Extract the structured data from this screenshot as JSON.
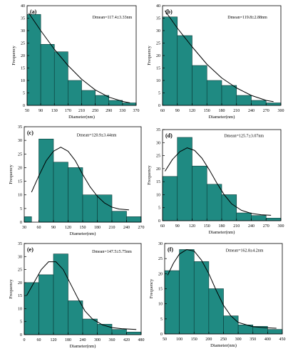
{
  "colors": {
    "bar": "#1f8a82",
    "bar_edge": "#0b3b38",
    "curve": "#000000",
    "axis": "#000000"
  },
  "chart_data": [
    {
      "panel": "(a)",
      "type": "bar",
      "annotation": "Dmean=117.4±3.33nm",
      "xlabel": "Diameter(nm)",
      "ylabel": "Frequency",
      "xlim": [
        50,
        370
      ],
      "ylim": [
        0,
        40
      ],
      "xticks": [
        50,
        90,
        130,
        170,
        210,
        250,
        290,
        330,
        370
      ],
      "yticks": [
        0,
        5,
        10,
        15,
        20,
        25,
        30,
        35,
        40
      ],
      "bins": [
        [
          50,
          90
        ],
        [
          90,
          130
        ],
        [
          130,
          170
        ],
        [
          170,
          210
        ],
        [
          210,
          250
        ],
        [
          250,
          290
        ],
        [
          290,
          330
        ],
        [
          330,
          370
        ]
      ],
      "values": [
        36.5,
        24.5,
        21.5,
        10,
        6,
        4,
        2,
        1
      ],
      "fit": {
        "x": [
          55,
          90,
          130,
          170,
          210,
          250,
          290,
          330,
          352
        ],
        "y": [
          37,
          30,
          22.5,
          16,
          10.5,
          6.2,
          3.3,
          1.6,
          1.0
        ]
      }
    },
    {
      "panel": "(b)",
      "type": "bar",
      "annotation": "Dmean=119.8±2.88nm",
      "xlabel": "Diameter(nm)",
      "ylabel": "Frequency",
      "xlim": [
        60,
        300
      ],
      "ylim": [
        0,
        40
      ],
      "xticks": [
        60,
        90,
        120,
        150,
        180,
        210,
        240,
        270,
        300
      ],
      "yticks": [
        0,
        5,
        10,
        15,
        20,
        25,
        30,
        35,
        40
      ],
      "bins": [
        [
          60,
          90
        ],
        [
          90,
          120
        ],
        [
          120,
          150
        ],
        [
          150,
          180
        ],
        [
          180,
          210
        ],
        [
          210,
          240
        ],
        [
          240,
          270
        ],
        [
          270,
          300
        ]
      ],
      "values": [
        35.5,
        28,
        16,
        10,
        8,
        4,
        2,
        1
      ],
      "fit": {
        "x": [
          65,
          90,
          120,
          150,
          180,
          210,
          240,
          270,
          285
        ],
        "y": [
          38,
          31,
          23.5,
          16.5,
          11,
          7,
          4,
          2,
          1.5
        ]
      }
    },
    {
      "panel": "(c)",
      "type": "bar",
      "annotation": "Dmean=120.9±3.44nm",
      "xlabel": "Diameter(nm)",
      "ylabel": "Frequency",
      "xlim": [
        30,
        270
      ],
      "ylim": [
        0,
        35
      ],
      "xticks": [
        30,
        60,
        90,
        120,
        150,
        180,
        210,
        240,
        270
      ],
      "yticks": [
        0,
        5,
        10,
        15,
        20,
        25,
        30,
        35
      ],
      "bins": [
        [
          30,
          45
        ],
        [
          60,
          90
        ],
        [
          90,
          120
        ],
        [
          120,
          150
        ],
        [
          150,
          180
        ],
        [
          180,
          210
        ],
        [
          210,
          240
        ],
        [
          240,
          270
        ]
      ],
      "values": [
        2,
        30.5,
        22,
        20,
        10,
        10,
        4,
        2
      ],
      "fit": {
        "x": [
          45,
          60,
          75,
          90,
          105,
          120,
          135,
          150,
          165,
          180,
          195,
          210,
          225,
          245
        ],
        "y": [
          11,
          17,
          22.5,
          26,
          27.5,
          26,
          22.5,
          17.5,
          13,
          9.5,
          7,
          5.5,
          4.8,
          4.5
        ]
      }
    },
    {
      "panel": "(d)",
      "type": "bar",
      "annotation": "Dmean=125.7±3.07nm",
      "xlabel": "Diameter(nm)",
      "ylabel": "Frequency",
      "xlim": [
        60,
        300
      ],
      "ylim": [
        0,
        35
      ],
      "xticks": [
        60,
        90,
        120,
        150,
        180,
        210,
        240,
        270,
        300
      ],
      "yticks": [
        0,
        5,
        10,
        15,
        20,
        25,
        30,
        35
      ],
      "bins": [
        [
          60,
          90
        ],
        [
          90,
          120
        ],
        [
          120,
          150
        ],
        [
          150,
          180
        ],
        [
          180,
          210
        ],
        [
          210,
          240
        ],
        [
          240,
          270
        ],
        [
          270,
          300
        ]
      ],
      "values": [
        17,
        32,
        21,
        14,
        10,
        3,
        2,
        1
      ],
      "fit": {
        "x": [
          65,
          80,
          95,
          110,
          125,
          140,
          155,
          170,
          185,
          200,
          220,
          240,
          260,
          280
        ],
        "y": [
          19,
          23.5,
          26.5,
          28,
          27,
          24,
          19.5,
          14.5,
          10,
          6.5,
          4,
          2.8,
          2.3,
          2.1
        ]
      }
    },
    {
      "panel": "(e)",
      "type": "bar",
      "annotation": "Dmean=147.5±5.75nm",
      "xlabel": "Diameter(nm)",
      "ylabel": "Frequency",
      "xlim": [
        0,
        480
      ],
      "ylim": [
        0,
        35
      ],
      "xticks": [
        0,
        60,
        120,
        180,
        240,
        300,
        360,
        420,
        480
      ],
      "yticks": [
        0,
        5,
        10,
        15,
        20,
        25,
        30,
        35
      ],
      "bins": [
        [
          0,
          60
        ],
        [
          60,
          120
        ],
        [
          120,
          180
        ],
        [
          180,
          240
        ],
        [
          240,
          300
        ],
        [
          300,
          360
        ],
        [
          360,
          420
        ],
        [
          420,
          480
        ]
      ],
      "values": [
        20,
        23,
        31,
        13,
        6,
        4,
        2,
        1
      ],
      "fit": {
        "x": [
          10,
          40,
          70,
          100,
          130,
          160,
          190,
          220,
          250,
          280,
          320,
          360,
          400,
          440,
          460
        ],
        "y": [
          15,
          20,
          25,
          28,
          28,
          25,
          19.5,
          14,
          9,
          6,
          3.8,
          2.7,
          2.3,
          2.1,
          2.0
        ]
      }
    },
    {
      "panel": "(f)",
      "type": "bar",
      "annotation": "Dmean=162.8±4.2nm",
      "xlabel": "Diameter(nm)",
      "ylabel": "Frequency",
      "xlim": [
        50,
        450
      ],
      "ylim": [
        0,
        30
      ],
      "xticks": [
        50,
        100,
        150,
        200,
        250,
        300,
        350,
        400,
        450
      ],
      "yticks": [
        0,
        5,
        10,
        15,
        20,
        25,
        30
      ],
      "bins": [
        [
          50,
          100
        ],
        [
          100,
          150
        ],
        [
          150,
          200
        ],
        [
          200,
          250
        ],
        [
          250,
          300
        ],
        [
          300,
          350
        ],
        [
          350,
          400
        ],
        [
          400,
          450
        ]
      ],
      "values": [
        21,
        28,
        24,
        15,
        6,
        3,
        2.5,
        1.5
      ],
      "fit": {
        "x": [
          60,
          80,
          100,
          125,
          150,
          175,
          200,
          225,
          250,
          275,
          300,
          350,
          400,
          430
        ],
        "y": [
          19.5,
          23.5,
          26.5,
          28,
          27.5,
          24.5,
          20,
          14.5,
          9.5,
          6,
          3.8,
          2.4,
          2.0,
          1.9
        ]
      }
    }
  ]
}
